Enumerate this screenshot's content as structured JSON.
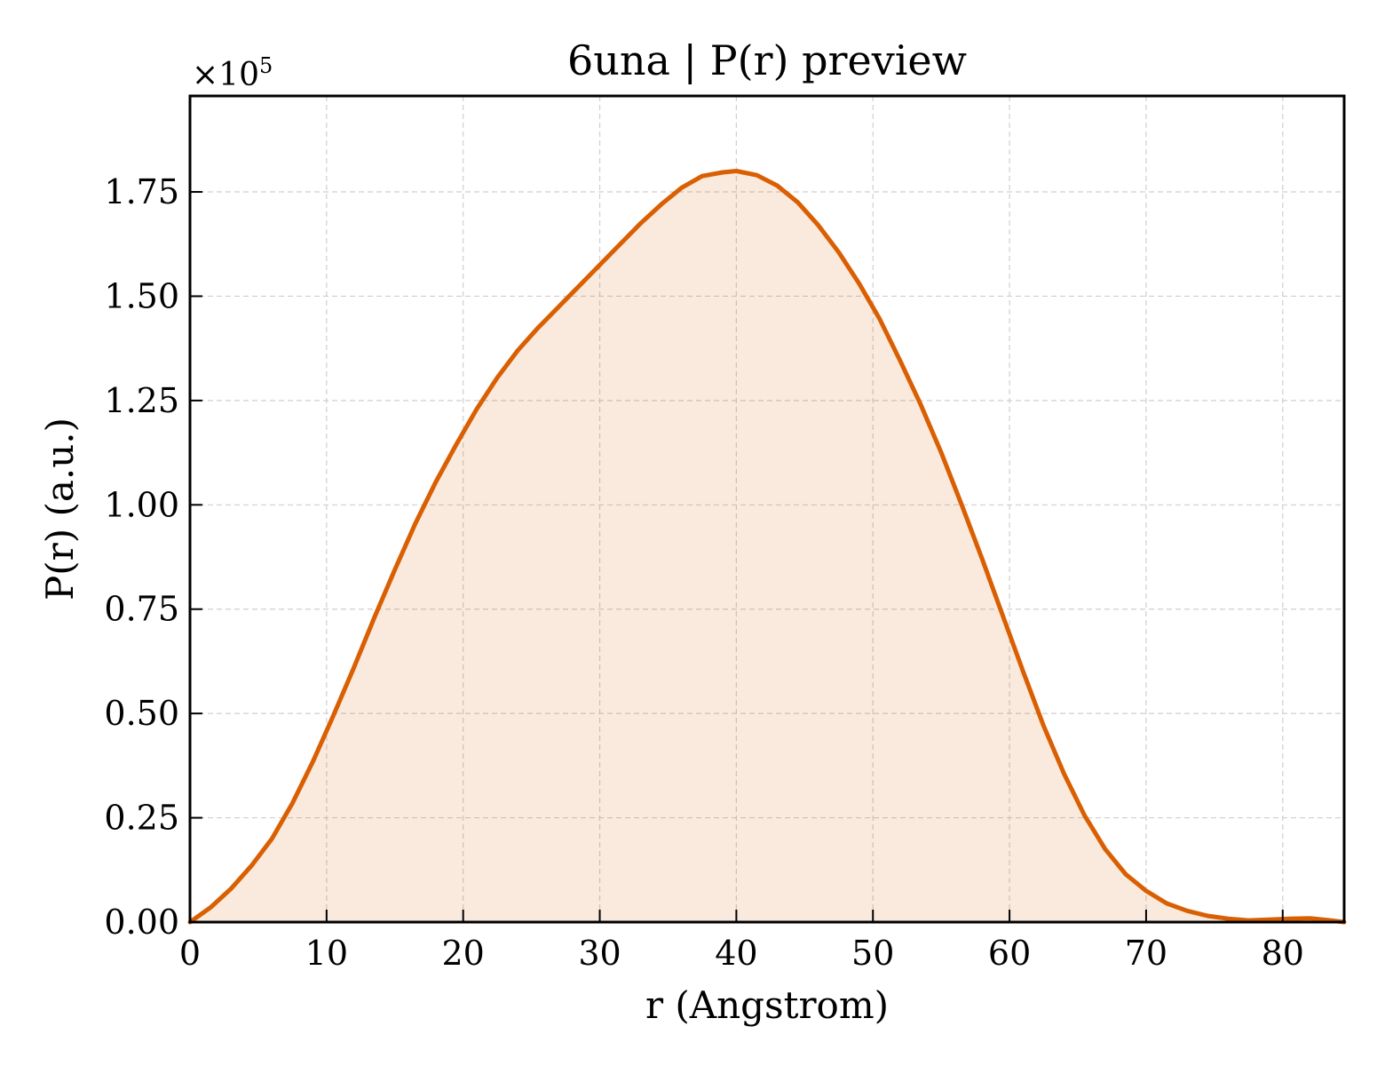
{
  "chart_data": {
    "type": "area",
    "title": "6una | P(r) preview",
    "xlabel": "r (Angstrom)",
    "ylabel": "P(r) (a.u.)",
    "y_multiplier_label": "×10",
    "y_multiplier_exponent": "5",
    "xlim": [
      0,
      84.5
    ],
    "ylim": [
      0,
      1.98
    ],
    "xticks": [
      0,
      10,
      20,
      30,
      40,
      50,
      60,
      70,
      80
    ],
    "xtick_labels": [
      "0",
      "10",
      "20",
      "30",
      "40",
      "50",
      "60",
      "70",
      "80"
    ],
    "yticks": [
      0,
      0.25,
      0.5,
      0.75,
      1.0,
      1.25,
      1.5,
      1.75
    ],
    "ytick_labels": [
      "0.00",
      "0.25",
      "0.50",
      "0.75",
      "1.00",
      "1.25",
      "1.50",
      "1.75"
    ],
    "grid": true,
    "color": "#d95f02",
    "fill_color": "#d95f02",
    "fill_opacity": 0.13,
    "series": [
      {
        "x": [
          0,
          1.5,
          3,
          4.5,
          6,
          7.5,
          9,
          10.5,
          12,
          13.5,
          15,
          16.5,
          18,
          19.5,
          21,
          22.5,
          24,
          25.5,
          27,
          28.5,
          30,
          31.5,
          33,
          34.5,
          36,
          37.5,
          39,
          40,
          41.5,
          43,
          44.5,
          46,
          47.5,
          49,
          50.5,
          52,
          53.5,
          55,
          56.5,
          58,
          59.5,
          61,
          62.5,
          64,
          65.5,
          67,
          68.5,
          70,
          71.5,
          73,
          74.5,
          76,
          77.5,
          79,
          80.5,
          82,
          83.5,
          84.5
        ],
        "y": [
          0.0,
          0.035,
          0.08,
          0.135,
          0.2,
          0.285,
          0.385,
          0.495,
          0.61,
          0.73,
          0.845,
          0.955,
          1.055,
          1.145,
          1.23,
          1.305,
          1.37,
          1.425,
          1.475,
          1.525,
          1.575,
          1.625,
          1.675,
          1.72,
          1.76,
          1.788,
          1.797,
          1.8,
          1.79,
          1.765,
          1.725,
          1.67,
          1.605,
          1.53,
          1.445,
          1.345,
          1.24,
          1.125,
          1.0,
          0.87,
          0.735,
          0.6,
          0.47,
          0.355,
          0.255,
          0.175,
          0.115,
          0.075,
          0.045,
          0.027,
          0.015,
          0.008,
          0.004,
          0.006,
          0.008,
          0.009,
          0.004,
          0.0
        ]
      }
    ]
  }
}
